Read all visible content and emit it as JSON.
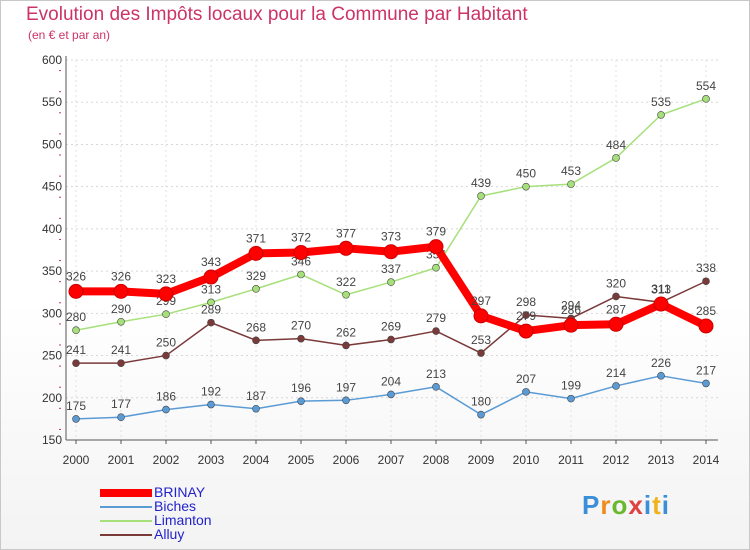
{
  "header": {
    "title": "Evolution des Impôts locaux pour la Commune par Habitant",
    "subtitle": "(en € et par an)"
  },
  "logo": {
    "text": "Proxiti"
  },
  "chart_data": {
    "type": "line",
    "categories": [
      "2000",
      "2001",
      "2002",
      "2003",
      "2004",
      "2005",
      "2006",
      "2007",
      "2008",
      "2009",
      "2010",
      "2011",
      "2012",
      "2013",
      "2014"
    ],
    "yticks": [
      150,
      200,
      250,
      300,
      350,
      400,
      450,
      500,
      550,
      600
    ],
    "ylim": [
      150,
      600
    ],
    "legend_position": "bottom-left",
    "series": [
      {
        "name": "BRINAY",
        "color": "#ff0000",
        "emphasis": true,
        "values": [
          326,
          326,
          323,
          343,
          371,
          372,
          377,
          373,
          379,
          297,
          279,
          286,
          287,
          311,
          285
        ],
        "labels": [
          "326",
          "326",
          "323",
          "343",
          "371",
          "372",
          "377",
          "373",
          "379",
          "297",
          "279",
          "286",
          "287",
          "311",
          "285"
        ]
      },
      {
        "name": "Biches",
        "color": "#5b9bd5",
        "emphasis": false,
        "values": [
          175,
          177,
          186,
          192,
          187,
          196,
          197,
          204,
          213,
          180,
          207,
          199,
          214,
          226,
          217
        ],
        "labels": [
          "175",
          "177",
          "186",
          "192",
          "187",
          "196",
          "197",
          "204",
          "213",
          "180",
          "207",
          "199",
          "214",
          "226",
          "217"
        ]
      },
      {
        "name": "Limanton",
        "color": "#a6e07a",
        "emphasis": false,
        "values": [
          280,
          290,
          299,
          313,
          329,
          346,
          322,
          337,
          354,
          439,
          450,
          453,
          484,
          535,
          554
        ],
        "labels": [
          "280",
          "290",
          "299",
          "313",
          "329",
          "346",
          "322",
          "337",
          "354",
          "439",
          "450",
          "453",
          "484",
          "535",
          "554"
        ]
      },
      {
        "name": "Alluy",
        "color": "#7a3a3a",
        "emphasis": false,
        "values": [
          241,
          241,
          250,
          289,
          268,
          270,
          262,
          269,
          279,
          253,
          298,
          294,
          320,
          313,
          338
        ],
        "labels": [
          "241",
          "241",
          "250",
          "289",
          "268",
          "270",
          "262",
          "269",
          "279",
          "253",
          "298",
          "294",
          "320",
          "313",
          "338"
        ]
      }
    ]
  }
}
